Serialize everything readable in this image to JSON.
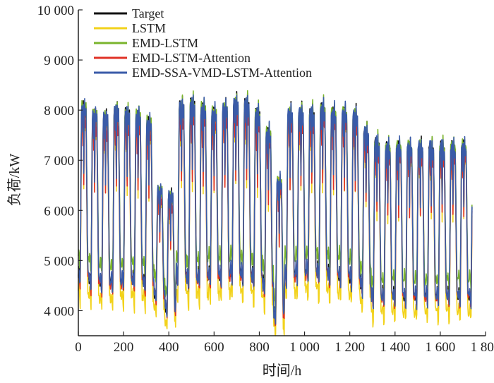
{
  "chart_data": {
    "type": "line",
    "xlabel": "时间/h",
    "ylabel": "负荷/kW",
    "xlim": [
      0,
      1800
    ],
    "ylim": [
      3500,
      10000
    ],
    "x_ticks": [
      0,
      200,
      400,
      600,
      800,
      1000,
      1200,
      1400,
      1600,
      1800
    ],
    "x_tick_labels": [
      "0",
      "200",
      "400",
      "600",
      "800",
      "1 000",
      "1 200",
      "1 400",
      "1 600",
      "1 800"
    ],
    "y_ticks": [
      4000,
      5000,
      6000,
      7000,
      8000,
      9000,
      10000
    ],
    "y_tick_labels": [
      "4 000",
      "5 000",
      "6 000",
      "7 000",
      "8 000",
      "9 000",
      "10 000"
    ],
    "legend_position": "top-left",
    "series": [
      {
        "name": "Target",
        "color": "#111111"
      },
      {
        "name": "LSTM",
        "color": "#f2d21b"
      },
      {
        "name": "EMD-LSTM",
        "color": "#7ab42c"
      },
      {
        "name": "EMD-LSTM-Attention",
        "color": "#e03226"
      },
      {
        "name": "EMD-SSA-VMD-LSTM-Attention",
        "color": "#3a5ba8"
      }
    ],
    "daily_profile": {
      "period_h": 48,
      "x_end": 1740,
      "days": [
        {
          "x": 0,
          "peak": 8200,
          "trough": 4500
        },
        {
          "x": 48,
          "peak": 8050,
          "trough": 4400
        },
        {
          "x": 96,
          "peak": 8000,
          "trough": 4350
        },
        {
          "x": 144,
          "peak": 8150,
          "trough": 4350
        },
        {
          "x": 192,
          "peak": 8100,
          "trough": 4400
        },
        {
          "x": 240,
          "peak": 8050,
          "trough": 4400
        },
        {
          "x": 288,
          "peak": 7900,
          "trough": 4350
        },
        {
          "x": 336,
          "peak": 6500,
          "trough": 4200
        },
        {
          "x": 384,
          "peak": 6400,
          "trough": 3900
        },
        {
          "x": 432,
          "peak": 8250,
          "trough": 4500
        },
        {
          "x": 480,
          "peak": 8300,
          "trough": 4400
        },
        {
          "x": 528,
          "peak": 8200,
          "trough": 4450
        },
        {
          "x": 576,
          "peak": 8100,
          "trough": 4500
        },
        {
          "x": 624,
          "peak": 8200,
          "trough": 4500
        },
        {
          "x": 672,
          "peak": 8300,
          "trough": 4550
        },
        {
          "x": 720,
          "peak": 8300,
          "trough": 4500
        },
        {
          "x": 768,
          "peak": 8100,
          "trough": 4450
        },
        {
          "x": 816,
          "peak": 7700,
          "trough": 4300
        },
        {
          "x": 864,
          "peak": 6700,
          "trough": 3750
        },
        {
          "x": 912,
          "peak": 8100,
          "trough": 4500
        },
        {
          "x": 960,
          "peak": 8100,
          "trough": 4550
        },
        {
          "x": 1008,
          "peak": 8100,
          "trough": 4600
        },
        {
          "x": 1056,
          "peak": 8200,
          "trough": 4550
        },
        {
          "x": 1104,
          "peak": 8100,
          "trough": 4500
        },
        {
          "x": 1152,
          "peak": 8100,
          "trough": 4500
        },
        {
          "x": 1200,
          "peak": 8050,
          "trough": 4450
        },
        {
          "x": 1248,
          "peak": 7700,
          "trough": 4300
        },
        {
          "x": 1296,
          "peak": 7500,
          "trough": 4050
        },
        {
          "x": 1344,
          "peak": 7400,
          "trough": 4100
        }
      ]
    }
  }
}
